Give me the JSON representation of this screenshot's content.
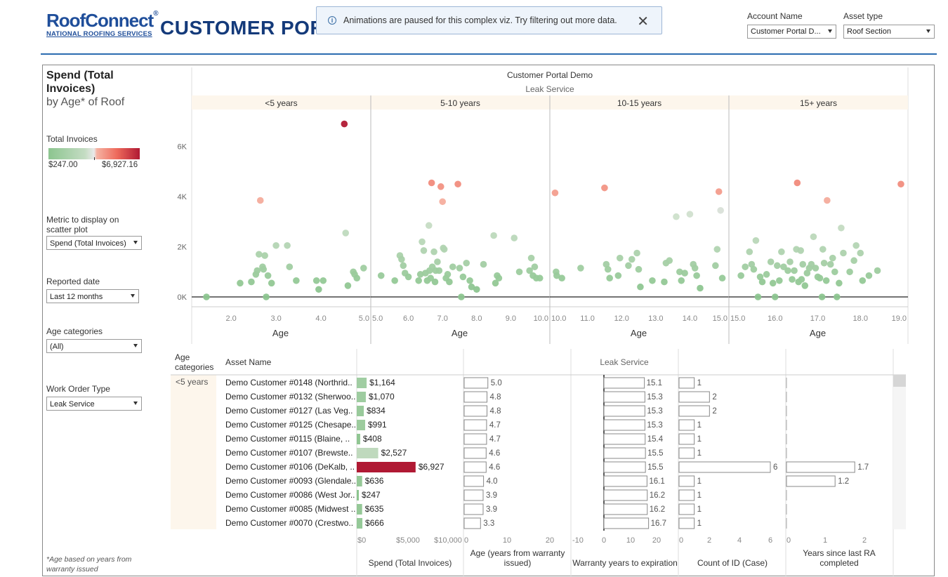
{
  "header": {
    "logo_brand": "RoofConnect",
    "logo_sub": "NATIONAL ROOFING SERVICES",
    "title": "CUSTOMER PORTAL"
  },
  "toast": {
    "message": "Animations are paused for this complex viz. Try filtering out more data.",
    "info_icon": "info-icon",
    "close_icon": "close-icon"
  },
  "filters_top": {
    "account_name": {
      "label": "Account Name",
      "value": "Customer Portal D..."
    },
    "asset_type": {
      "label": "Asset type",
      "value": "Roof Section"
    }
  },
  "sidebar": {
    "title": "Spend (Total Invoices)",
    "subtitle": "by Age* of Roof",
    "legend_title": "Total Invoices",
    "legend_min": "$247.00",
    "legend_max": "$6,927.16",
    "metric_label": "Metric to display on scatter plot",
    "metric_value": "Spend (Total Invoices)",
    "reported_label": "Reported date",
    "reported_value": "Last 12 months",
    "agecat_label": "Age categories",
    "agecat_value": "(All)",
    "wo_label": "Work Order Type",
    "wo_value": "Leak Service",
    "footnote": "*Age based on years from warranty issued"
  },
  "colors": {
    "low": "#8cc58f",
    "mid": "#e9e9e9",
    "high": "#b01933",
    "accent": "#1f4e9a",
    "panel_header_bg": "#fdf6ec"
  },
  "chart_data": {
    "type": "scatter",
    "title": "Customer Portal Demo",
    "subtitle": "Leak Service",
    "xlabel": "Age",
    "y_ticks": [
      "6K",
      "4K",
      "2K",
      "0K"
    ],
    "ylim": [
      0,
      7000
    ],
    "panels": [
      {
        "label": "<5 years",
        "xlim": [
          1.2,
          5.0
        ],
        "ticks": [
          "2.0",
          "3.0",
          "4.0",
          "5.0"
        ],
        "points": [
          [
            1.45,
            0
          ],
          [
            2.2,
            550
          ],
          [
            2.45,
            600
          ],
          [
            2.55,
            900
          ],
          [
            2.58,
            1050
          ],
          [
            2.62,
            1700
          ],
          [
            2.65,
            3850
          ],
          [
            2.7,
            1200
          ],
          [
            2.72,
            1100
          ],
          [
            2.75,
            1650
          ],
          [
            2.78,
            0
          ],
          [
            2.82,
            850
          ],
          [
            2.9,
            550
          ],
          [
            3.0,
            2050
          ],
          [
            3.25,
            2050
          ],
          [
            3.3,
            1200
          ],
          [
            3.45,
            650
          ],
          [
            3.9,
            650
          ],
          [
            3.95,
            300
          ],
          [
            4.05,
            650
          ],
          [
            4.52,
            6900
          ],
          [
            4.55,
            2550
          ],
          [
            4.6,
            450
          ],
          [
            4.72,
            1000
          ],
          [
            4.75,
            900
          ],
          [
            4.8,
            750
          ],
          [
            4.95,
            1150
          ]
        ]
      },
      {
        "label": "5-10 years",
        "xlim": [
          5.0,
          10.0
        ],
        "ticks": [
          "5.0",
          "6.0",
          "7.0",
          "8.0",
          "9.0",
          "10.0"
        ],
        "points": [
          [
            5.2,
            850
          ],
          [
            5.6,
            650
          ],
          [
            5.75,
            1650
          ],
          [
            5.8,
            1500
          ],
          [
            5.85,
            1250
          ],
          [
            5.9,
            950
          ],
          [
            6.0,
            800
          ],
          [
            6.3,
            650
          ],
          [
            6.35,
            900
          ],
          [
            6.4,
            2200
          ],
          [
            6.45,
            1850
          ],
          [
            6.5,
            950
          ],
          [
            6.55,
            650
          ],
          [
            6.6,
            2850
          ],
          [
            6.62,
            1050
          ],
          [
            6.65,
            750
          ],
          [
            6.68,
            4550
          ],
          [
            6.7,
            1200
          ],
          [
            6.75,
            1800
          ],
          [
            6.78,
            600
          ],
          [
            6.8,
            1050
          ],
          [
            6.85,
            1400
          ],
          [
            6.9,
            1050
          ],
          [
            6.95,
            4400
          ],
          [
            7.0,
            3800
          ],
          [
            7.02,
            1950
          ],
          [
            7.05,
            1900
          ],
          [
            7.1,
            750
          ],
          [
            7.15,
            900
          ],
          [
            7.2,
            600
          ],
          [
            7.3,
            1200
          ],
          [
            7.45,
            4500
          ],
          [
            7.5,
            1150
          ],
          [
            7.55,
            0
          ],
          [
            7.6,
            800
          ],
          [
            7.7,
            1350
          ],
          [
            7.8,
            650
          ],
          [
            7.85,
            400
          ],
          [
            8.0,
            300
          ],
          [
            8.2,
            1300
          ],
          [
            8.5,
            2450
          ],
          [
            8.55,
            550
          ],
          [
            8.6,
            850
          ],
          [
            8.65,
            750
          ],
          [
            9.1,
            2350
          ],
          [
            9.25,
            1000
          ],
          [
            9.55,
            1050
          ],
          [
            9.6,
            1550
          ],
          [
            9.65,
            850
          ],
          [
            9.7,
            1200
          ],
          [
            9.75,
            750
          ],
          [
            9.85,
            750
          ]
        ]
      },
      {
        "label": "10-15 years",
        "xlim": [
          10.0,
          15.0
        ],
        "ticks": [
          "10.0",
          "11.0",
          "12.0",
          "13.0",
          "14.0",
          "15.0"
        ],
        "points": [
          [
            10.05,
            4150
          ],
          [
            10.08,
            1000
          ],
          [
            10.1,
            850
          ],
          [
            10.25,
            750
          ],
          [
            10.8,
            1150
          ],
          [
            11.5,
            4350
          ],
          [
            11.55,
            1300
          ],
          [
            11.6,
            1100
          ],
          [
            11.65,
            750
          ],
          [
            11.9,
            850
          ],
          [
            11.95,
            1550
          ],
          [
            12.2,
            1250
          ],
          [
            12.3,
            1500
          ],
          [
            12.45,
            1750
          ],
          [
            12.5,
            1100
          ],
          [
            12.55,
            400
          ],
          [
            12.9,
            650
          ],
          [
            13.25,
            600
          ],
          [
            13.3,
            1350
          ],
          [
            13.4,
            1450
          ],
          [
            13.6,
            3200
          ],
          [
            13.7,
            1000
          ],
          [
            13.75,
            650
          ],
          [
            13.85,
            950
          ],
          [
            14.0,
            3300
          ],
          [
            14.1,
            1300
          ],
          [
            14.15,
            1150
          ],
          [
            14.2,
            850
          ],
          [
            14.3,
            350
          ],
          [
            14.75,
            1250
          ],
          [
            14.8,
            1900
          ],
          [
            14.85,
            4200
          ],
          [
            14.9,
            3450
          ],
          [
            14.95,
            750
          ]
        ]
      },
      {
        "label": "15+ years",
        "xlim": [
          15.0,
          19.0
        ],
        "ticks": [
          "15.0",
          "16.0",
          "17.0",
          "18.0",
          "19.0"
        ],
        "points": [
          [
            15.2,
            850
          ],
          [
            15.3,
            1200
          ],
          [
            15.4,
            1800
          ],
          [
            15.45,
            1300
          ],
          [
            15.5,
            1100
          ],
          [
            15.55,
            2250
          ],
          [
            15.6,
            0
          ],
          [
            15.65,
            800
          ],
          [
            15.7,
            600
          ],
          [
            15.8,
            900
          ],
          [
            15.9,
            1400
          ],
          [
            15.95,
            550
          ],
          [
            16.0,
            0
          ],
          [
            16.05,
            1250
          ],
          [
            16.1,
            650
          ],
          [
            16.15,
            1800
          ],
          [
            16.2,
            1200
          ],
          [
            16.3,
            1050
          ],
          [
            16.35,
            1400
          ],
          [
            16.4,
            700
          ],
          [
            16.45,
            1050
          ],
          [
            16.5,
            1900
          ],
          [
            16.52,
            4550
          ],
          [
            16.55,
            600
          ],
          [
            16.6,
            1850
          ],
          [
            16.62,
            700
          ],
          [
            16.65,
            1300
          ],
          [
            16.7,
            450
          ],
          [
            16.75,
            950
          ],
          [
            16.8,
            1150
          ],
          [
            16.85,
            1300
          ],
          [
            16.9,
            2400
          ],
          [
            16.95,
            1150
          ],
          [
            17.0,
            800
          ],
          [
            17.05,
            750
          ],
          [
            17.1,
            0
          ],
          [
            17.12,
            1900
          ],
          [
            17.15,
            1350
          ],
          [
            17.2,
            650
          ],
          [
            17.22,
            3850
          ],
          [
            17.3,
            1300
          ],
          [
            17.35,
            1550
          ],
          [
            17.4,
            1000
          ],
          [
            17.45,
            0
          ],
          [
            17.5,
            550
          ],
          [
            17.55,
            2750
          ],
          [
            17.6,
            1750
          ],
          [
            17.75,
            1000
          ],
          [
            17.85,
            1450
          ],
          [
            17.9,
            2050
          ],
          [
            18.0,
            1750
          ],
          [
            18.05,
            650
          ],
          [
            18.2,
            850
          ],
          [
            18.4,
            1050
          ],
          [
            18.95,
            4500
          ]
        ]
      }
    ]
  },
  "table": {
    "col_agecat": "Age categories",
    "col_asset": "Asset Name",
    "header_center": "Leak Service",
    "agecat_value": "<5 years",
    "rows": [
      {
        "name": "Demo Customer #0148 (Northrid..",
        "spend": 1164,
        "spend_label": "$1,164",
        "age": "5.0",
        "warranty": "15.1",
        "count": "1",
        "ra": ""
      },
      {
        "name": "Demo Customer #0132 (Sherwoo..",
        "spend": 1070,
        "spend_label": "$1,070",
        "age": "4.8",
        "warranty": "15.3",
        "count": "2",
        "ra": ""
      },
      {
        "name": "Demo Customer #0127 (Las Veg..",
        "spend": 834,
        "spend_label": "$834",
        "age": "4.8",
        "warranty": "15.3",
        "count": "2",
        "ra": ""
      },
      {
        "name": "Demo Customer #0125 (Chesape..",
        "spend": 991,
        "spend_label": "$991",
        "age": "4.7",
        "warranty": "15.3",
        "count": "1",
        "ra": ""
      },
      {
        "name": "Demo Customer #0115 (Blaine, ..",
        "spend": 408,
        "spend_label": "$408",
        "age": "4.7",
        "warranty": "15.4",
        "count": "1",
        "ra": ""
      },
      {
        "name": "Demo Customer #0107 (Brewste..",
        "spend": 2527,
        "spend_label": "$2,527",
        "age": "4.6",
        "warranty": "15.5",
        "count": "1",
        "ra": ""
      },
      {
        "name": "Demo Customer #0106 (DeKalb, ..",
        "spend": 6927,
        "spend_label": "$6,927",
        "age": "4.6",
        "warranty": "15.5",
        "count": "6",
        "ra": "1.7"
      },
      {
        "name": "Demo Customer #0093 (Glendale..",
        "spend": 636,
        "spend_label": "$636",
        "age": "4.0",
        "warranty": "16.1",
        "count": "1",
        "ra": "1.2"
      },
      {
        "name": "Demo Customer #0086 (West Jor..",
        "spend": 247,
        "spend_label": "$247",
        "age": "3.9",
        "warranty": "16.2",
        "count": "1",
        "ra": ""
      },
      {
        "name": "Demo Customer #0085 (Midwest ..",
        "spend": 635,
        "spend_label": "$635",
        "age": "3.9",
        "warranty": "16.2",
        "count": "1",
        "ra": ""
      },
      {
        "name": "Demo Customer #0070 (Crestwo..",
        "spend": 666,
        "spend_label": "$666",
        "age": "3.3",
        "warranty": "16.7",
        "count": "1",
        "ra": ""
      }
    ],
    "axes": {
      "spend": {
        "ticks": [
          "$0",
          "$5,000",
          "$10,000"
        ],
        "label": "Spend (Total Invoices)"
      },
      "age": {
        "ticks": [
          "0",
          "10",
          "20"
        ],
        "label": "Age (years from warranty issued)"
      },
      "warranty": {
        "ticks": [
          "-10",
          "0",
          "10",
          "20"
        ],
        "label": "Warranty years to expiration"
      },
      "count": {
        "ticks": [
          "0",
          "2",
          "4",
          "6"
        ],
        "label": "Count of ID (Case)"
      },
      "ra": {
        "ticks": [
          "0",
          "1",
          "2"
        ],
        "label": "Years since last RA completed"
      }
    }
  }
}
